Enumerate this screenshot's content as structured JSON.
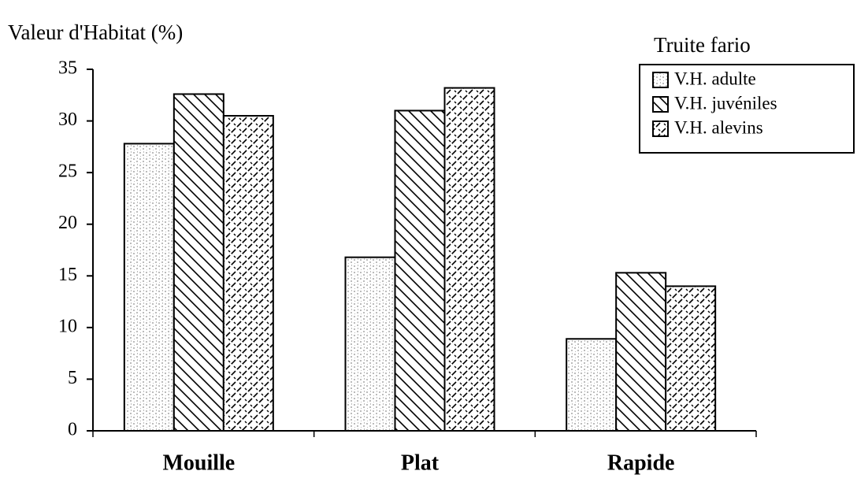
{
  "chart_data": {
    "type": "bar",
    "title": "Valeur d'Habitat (%)",
    "legend_title": "Truite fario",
    "categories": [
      "Mouille",
      "Plat",
      "Rapide"
    ],
    "series": [
      {
        "name": "V.H. adulte",
        "color": "#bbbbbb",
        "pattern": "dots",
        "values": [
          27.8,
          16.8,
          8.9
        ]
      },
      {
        "name": "V.H. juvéniles",
        "color": "#000000",
        "pattern": "hatch",
        "values": [
          32.6,
          31.0,
          15.3
        ]
      },
      {
        "name": "V.H. alevins",
        "color": "#000000",
        "pattern": "dashes",
        "values": [
          30.5,
          33.2,
          14.0
        ]
      }
    ],
    "ylim": [
      0,
      35
    ],
    "yticks": [
      0,
      5,
      10,
      15,
      20,
      25,
      30,
      35
    ],
    "legend": "top-right"
  }
}
